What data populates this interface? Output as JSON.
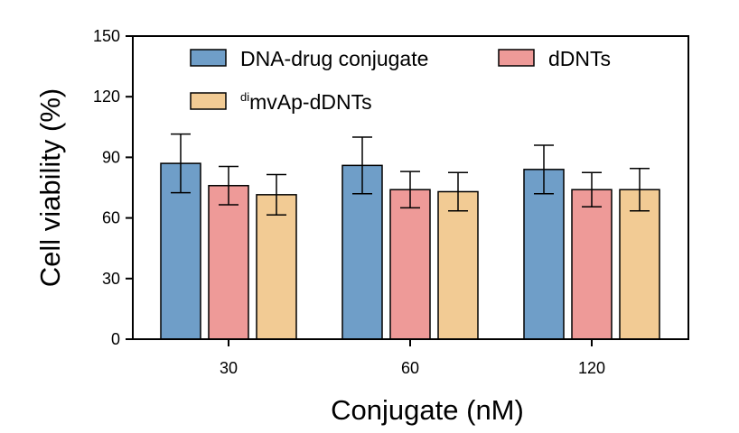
{
  "chart_data": {
    "type": "bar",
    "title": "",
    "xlabel": "Conjugate (nM)",
    "ylabel": "Cell viability (%)",
    "ylim": [
      0,
      150
    ],
    "yticks": [
      0,
      30,
      60,
      90,
      120,
      150
    ],
    "categories": [
      "30",
      "60",
      "120"
    ],
    "grid": false,
    "legend_position": "top",
    "series": [
      {
        "name": "DNA-drug conjugate",
        "color": "#6f9ec8",
        "values": [
          87,
          86,
          84
        ],
        "errors": [
          14.5,
          14,
          12
        ]
      },
      {
        "name": "dDNTs",
        "color": "#ee9a98",
        "values": [
          76,
          74,
          74
        ],
        "errors": [
          9.5,
          9,
          8.5
        ]
      },
      {
        "legend_superscript": "di",
        "name": "mvAp-dDNTs",
        "color": "#f2cb94",
        "values": [
          71.5,
          73,
          74
        ],
        "errors": [
          10,
          9.5,
          10.5
        ]
      }
    ]
  }
}
